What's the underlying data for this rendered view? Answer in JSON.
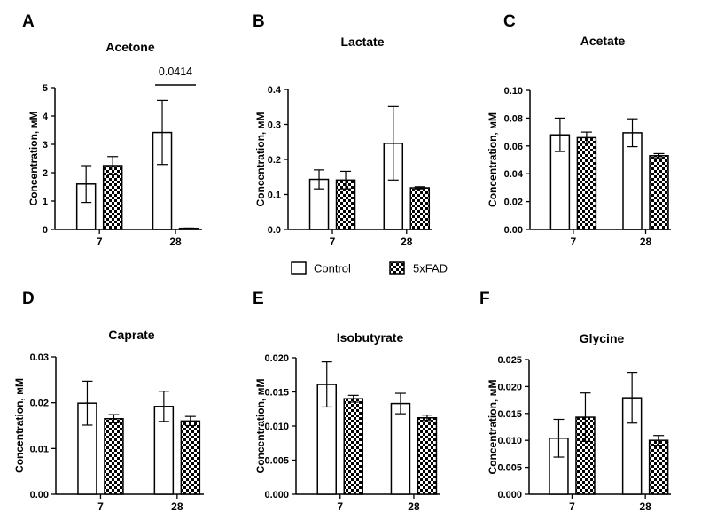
{
  "legend": {
    "entries": [
      {
        "label": "Control",
        "pattern": "white"
      },
      {
        "label": "5xFAD",
        "pattern": "checker"
      }
    ]
  },
  "chart_data": [
    {
      "panel": "A",
      "type": "bar",
      "title": "Acetone",
      "categories": [
        "7",
        "28"
      ],
      "ylabel": "Concentration, мМ",
      "ylim": [
        0,
        5
      ],
      "yticks": [
        "0",
        "1",
        "2",
        "3",
        "4",
        "5"
      ],
      "series": [
        {
          "name": "Control",
          "values": [
            1.6,
            3.42
          ],
          "errors": [
            0.65,
            1.13
          ]
        },
        {
          "name": "5xFAD",
          "values": [
            2.25,
            0.04
          ],
          "errors": [
            0.32,
            0.01
          ]
        }
      ],
      "annotations": [
        {
          "text": "0.0414",
          "category": "28"
        }
      ]
    },
    {
      "panel": "B",
      "type": "bar",
      "title": "Lactate",
      "categories": [
        "7",
        "28"
      ],
      "ylabel": "Concentration, мМ",
      "ylim": [
        0,
        0.4
      ],
      "yticks": [
        "0.0",
        "0.1",
        "0.2",
        "0.3",
        "0.4"
      ],
      "series": [
        {
          "name": "Control",
          "values": [
            0.143,
            0.246
          ],
          "errors": [
            0.027,
            0.105
          ]
        },
        {
          "name": "5xFAD",
          "values": [
            0.141,
            0.119
          ],
          "errors": [
            0.025,
            0.003
          ]
        }
      ]
    },
    {
      "panel": "C",
      "type": "bar",
      "title": "Acetate",
      "categories": [
        "7",
        "28"
      ],
      "ylabel": "Concentration, мМ",
      "ylim": [
        0,
        0.1
      ],
      "yticks": [
        "0.00",
        "0.02",
        "0.04",
        "0.06",
        "0.08",
        "0.10"
      ],
      "series": [
        {
          "name": "Control",
          "values": [
            0.068,
            0.0695
          ],
          "errors": [
            0.012,
            0.01
          ]
        },
        {
          "name": "5xFAD",
          "values": [
            0.066,
            0.053
          ],
          "errors": [
            0.004,
            0.0015
          ]
        }
      ]
    },
    {
      "panel": "D",
      "type": "bar",
      "title": "Caprate",
      "categories": [
        "7",
        "28"
      ],
      "ylabel": "Concentration, мМ",
      "ylim": [
        0,
        0.03
      ],
      "yticks": [
        "0.00",
        "0.01",
        "0.02",
        "0.03"
      ],
      "series": [
        {
          "name": "Control",
          "values": [
            0.0199,
            0.0192
          ],
          "errors": [
            0.0048,
            0.0033
          ]
        },
        {
          "name": "5xFAD",
          "values": [
            0.0165,
            0.016
          ],
          "errors": [
            0.0009,
            0.001
          ]
        }
      ]
    },
    {
      "panel": "E",
      "type": "bar",
      "title": "Isobutyrate",
      "categories": [
        "7",
        "28"
      ],
      "ylabel": "Concentration, мМ",
      "ylim": [
        0,
        0.02
      ],
      "yticks": [
        "0.000",
        "0.005",
        "0.010",
        "0.015",
        "0.020"
      ],
      "series": [
        {
          "name": "Control",
          "values": [
            0.0161,
            0.0133
          ],
          "errors": [
            0.0033,
            0.0015
          ]
        },
        {
          "name": "5xFAD",
          "values": [
            0.014,
            0.0112
          ],
          "errors": [
            0.0005,
            0.0004
          ]
        }
      ]
    },
    {
      "panel": "F",
      "type": "bar",
      "title": "Glycine",
      "categories": [
        "7",
        "28"
      ],
      "ylabel": "Concentration, мМ",
      "ylim": [
        0,
        0.025
      ],
      "yticks": [
        "0.000",
        "0.005",
        "0.010",
        "0.015",
        "0.020",
        "0.025"
      ],
      "series": [
        {
          "name": "Control",
          "values": [
            0.0104,
            0.0179
          ],
          "errors": [
            0.0035,
            0.0047
          ]
        },
        {
          "name": "5xFAD",
          "values": [
            0.0143,
            0.01
          ],
          "errors": [
            0.0045,
            0.0009
          ]
        }
      ]
    }
  ]
}
